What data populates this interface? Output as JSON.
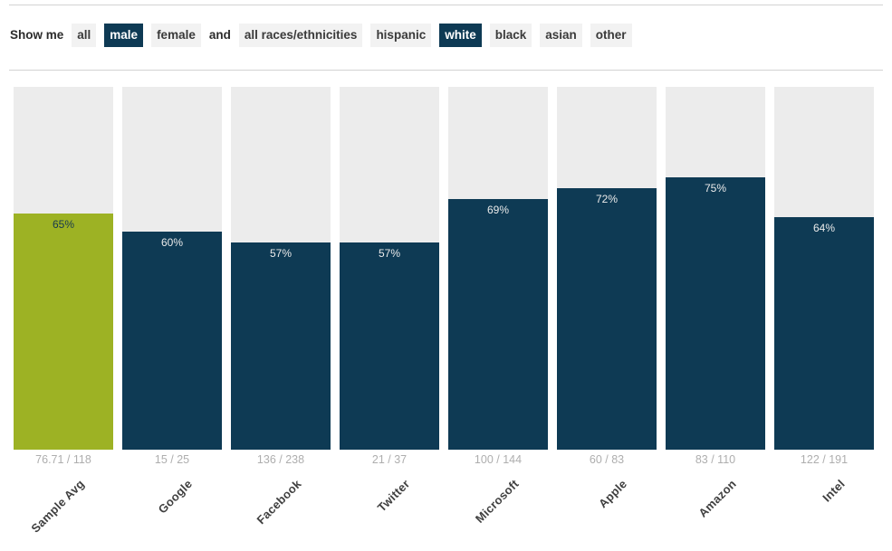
{
  "filters": {
    "show_me_label": "Show me",
    "and_label": "and",
    "gender_options": [
      {
        "label": "all",
        "selected": false
      },
      {
        "label": "male",
        "selected": true
      },
      {
        "label": "female",
        "selected": false
      }
    ],
    "race_options": [
      {
        "label": "all races/ethnicities",
        "selected": false
      },
      {
        "label": "hispanic",
        "selected": false
      },
      {
        "label": "white",
        "selected": true
      },
      {
        "label": "black",
        "selected": false
      },
      {
        "label": "asian",
        "selected": false
      },
      {
        "label": "other",
        "selected": false
      }
    ]
  },
  "colors": {
    "accent_navy": "#0e3a54",
    "accent_green": "#9db224",
    "track_gray": "#ececec",
    "button_gray": "#f2f2f2",
    "value_label_light": "#eaeaea",
    "value_label_dark": "#17394f"
  },
  "chart_data": {
    "type": "bar",
    "title": "",
    "xlabel": "",
    "ylabel": "",
    "ylim": [
      0,
      100
    ],
    "grid": false,
    "legend": "none",
    "categories": [
      "Sample Avg",
      "Google",
      "Facebook",
      "Twitter",
      "Microsoft",
      "Apple",
      "Amazon",
      "Intel"
    ],
    "values": [
      65,
      60,
      57,
      57,
      69,
      72,
      75,
      64
    ],
    "value_labels": [
      "65%",
      "60%",
      "57%",
      "57%",
      "69%",
      "72%",
      "75%",
      "64%"
    ],
    "fractions": [
      "76.71 / 118",
      "15 / 25",
      "136 / 238",
      "21 / 37",
      "100 / 144",
      "60 / 83",
      "83 / 110",
      "122 / 191"
    ],
    "bar_colors": [
      "#9db224",
      "#0e3a54",
      "#0e3a54",
      "#0e3a54",
      "#0e3a54",
      "#0e3a54",
      "#0e3a54",
      "#0e3a54"
    ],
    "value_label_colors": [
      "#17394f",
      "#eaeaea",
      "#eaeaea",
      "#eaeaea",
      "#eaeaea",
      "#eaeaea",
      "#eaeaea",
      "#eaeaea"
    ],
    "track_color": "#ececec",
    "series_note": "colored segment height = percentage of full gray track (track = 100%)"
  }
}
